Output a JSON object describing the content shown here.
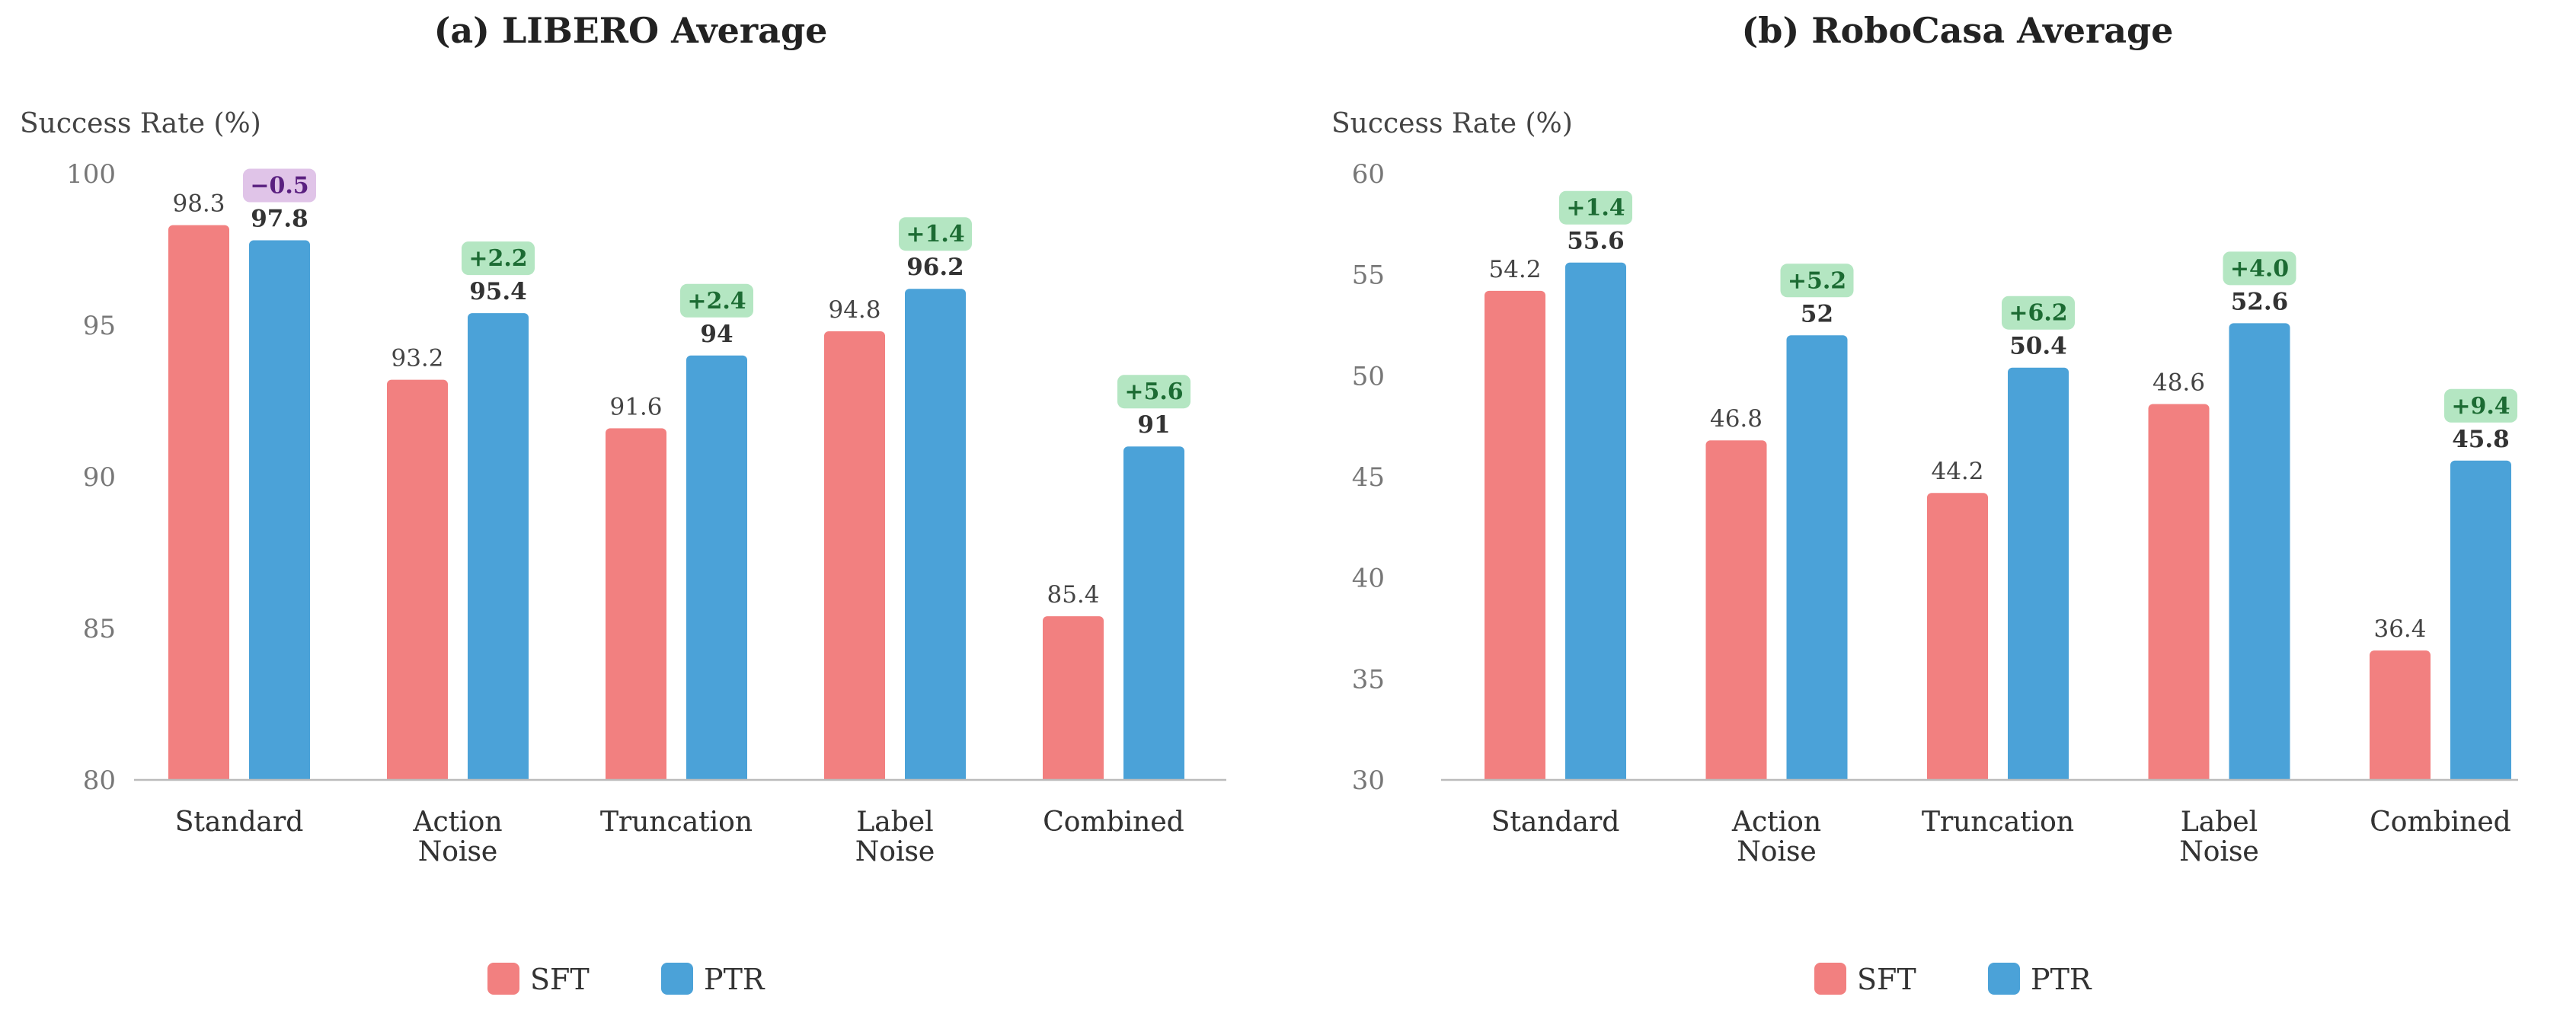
{
  "colors": {
    "sft": "#f28080",
    "ptr": "#4ba2d8",
    "delta_pos_bg": "#b4e6c2",
    "delta_pos_text": "#1c6b33",
    "delta_neg_bg": "#e0c4e8",
    "delta_neg_text": "#5a2080",
    "axis": "#bbbbbb"
  },
  "legend": {
    "sft": "SFT",
    "ptr": "PTR"
  },
  "chart_data": [
    {
      "type": "bar",
      "title": "(a) LIBERO Average",
      "ylabel": "Success Rate (%)",
      "ylim": [
        80,
        100
      ],
      "yticks": [
        "80",
        "85",
        "90",
        "95",
        "100"
      ],
      "categories": [
        [
          "Standard"
        ],
        [
          "Action",
          "Noise"
        ],
        [
          "Truncation"
        ],
        [
          "Label",
          "Noise"
        ],
        [
          "Combined"
        ]
      ],
      "series": [
        {
          "name": "SFT",
          "values": [
            98.3,
            93.2,
            91.6,
            94.8,
            85.4
          ],
          "labels": [
            "98.3",
            "93.2",
            "91.6",
            "94.8",
            "85.4"
          ]
        },
        {
          "name": "PTR",
          "values": [
            97.8,
            95.4,
            94,
            96.2,
            91
          ],
          "labels": [
            "97.8",
            "95.4",
            "94",
            "96.2",
            "91"
          ]
        }
      ],
      "deltas": [
        "−0.5",
        "+2.2",
        "+2.4",
        "+1.4",
        "+5.6"
      ],
      "legend_position": "bottom-center"
    },
    {
      "type": "bar",
      "title": "(b) RoboCasa Average",
      "ylabel": "Success Rate (%)",
      "ylim": [
        30,
        60
      ],
      "yticks": [
        "30",
        "35",
        "40",
        "45",
        "50",
        "55",
        "60"
      ],
      "categories": [
        [
          "Standard"
        ],
        [
          "Action",
          "Noise"
        ],
        [
          "Truncation"
        ],
        [
          "Label",
          "Noise"
        ],
        [
          "Combined"
        ]
      ],
      "series": [
        {
          "name": "SFT",
          "values": [
            54.2,
            46.8,
            44.2,
            48.6,
            36.4
          ],
          "labels": [
            "54.2",
            "46.8",
            "44.2",
            "48.6",
            "36.4"
          ]
        },
        {
          "name": "PTR",
          "values": [
            55.6,
            52,
            50.4,
            52.6,
            45.8
          ],
          "labels": [
            "55.6",
            "52",
            "50.4",
            "52.6",
            "45.8"
          ]
        }
      ],
      "deltas": [
        "+1.4",
        "+5.2",
        "+6.2",
        "+4.0",
        "+9.4"
      ],
      "legend_position": "bottom-center"
    }
  ]
}
